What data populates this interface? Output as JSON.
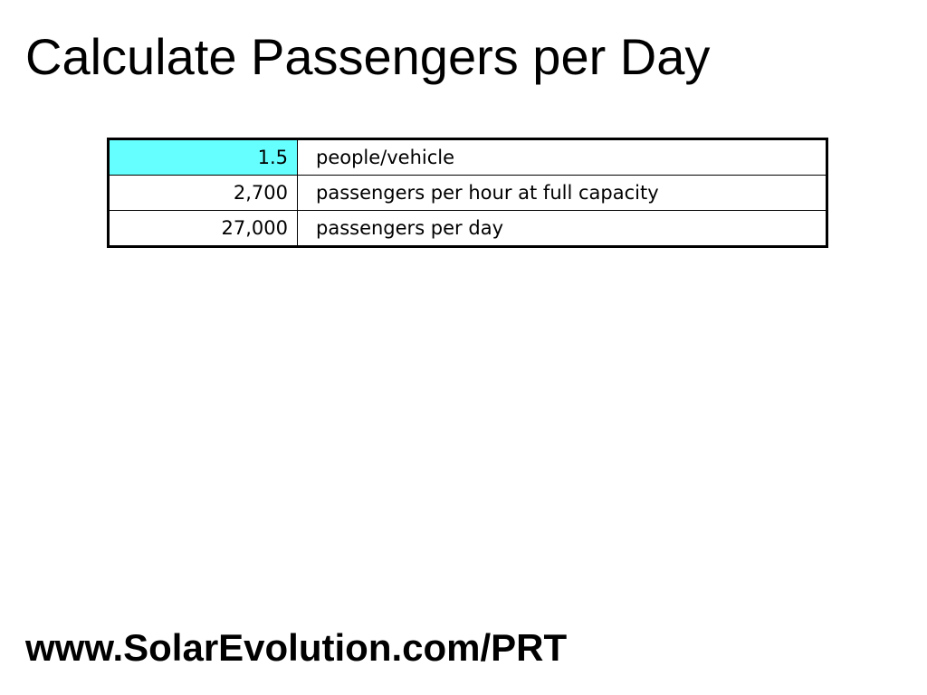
{
  "slide": {
    "title": "Calculate Passengers per Day",
    "footer": "www.SolarEvolution.com/PRT"
  },
  "colors": {
    "highlight_cell": "#66ffff"
  },
  "table": {
    "rows": [
      {
        "value": "1.5",
        "unit": "people/vehicle",
        "highlighted": true
      },
      {
        "value": "2,700",
        "unit": "passengers per hour at full capacity",
        "highlighted": false
      },
      {
        "value": "27,000",
        "unit": "passengers per day",
        "highlighted": false
      }
    ]
  }
}
